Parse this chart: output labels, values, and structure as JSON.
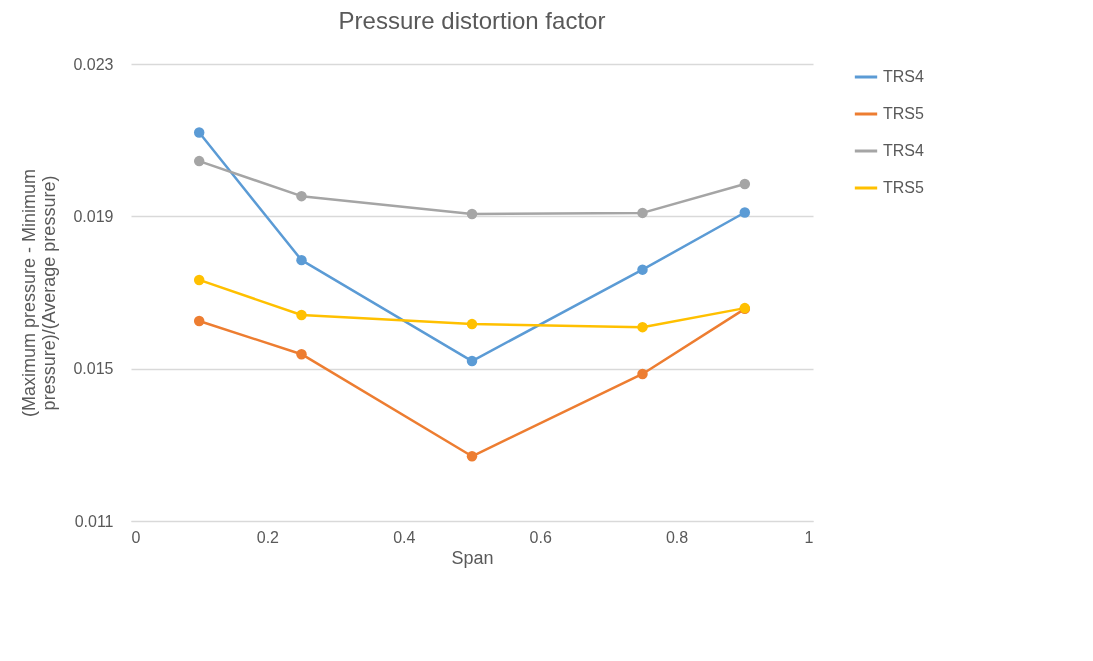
{
  "chart_data": {
    "type": "line",
    "title": "Pressure distortion factor",
    "xlabel": "Span",
    "ylabel": "(Maximum pressure - Minimum pressure)/(Average  pressure)",
    "x": [
      0.1,
      0.25,
      0.5,
      0.75,
      0.9
    ],
    "series": [
      {
        "name": "TRS4",
        "color": "#5b9bd5",
        "values": [
          0.0212,
          0.01785,
          0.0152,
          0.0176,
          0.0191
        ]
      },
      {
        "name": "TRS5",
        "color": "#ed7d31",
        "values": [
          0.01625,
          0.01538,
          0.0127,
          0.01486,
          0.01657
        ]
      },
      {
        "name": "TRS4",
        "color": "#a5a5a5",
        "values": [
          0.02045,
          0.01953,
          0.01906,
          0.01909,
          0.01985
        ]
      },
      {
        "name": "TRS5",
        "color": "#ffc000",
        "values": [
          0.01733,
          0.01641,
          0.01617,
          0.01609,
          0.01659
        ]
      }
    ],
    "xlim": [
      0,
      1
    ],
    "xticks": [
      0,
      0.2,
      0.4,
      0.6,
      0.8,
      1
    ],
    "ylim": [
      0.011,
      0.023
    ],
    "yticks": [
      0.011,
      0.015,
      0.019,
      0.023
    ],
    "grid": "y",
    "legend": "right",
    "marker": "circle",
    "line_style": "solid"
  }
}
